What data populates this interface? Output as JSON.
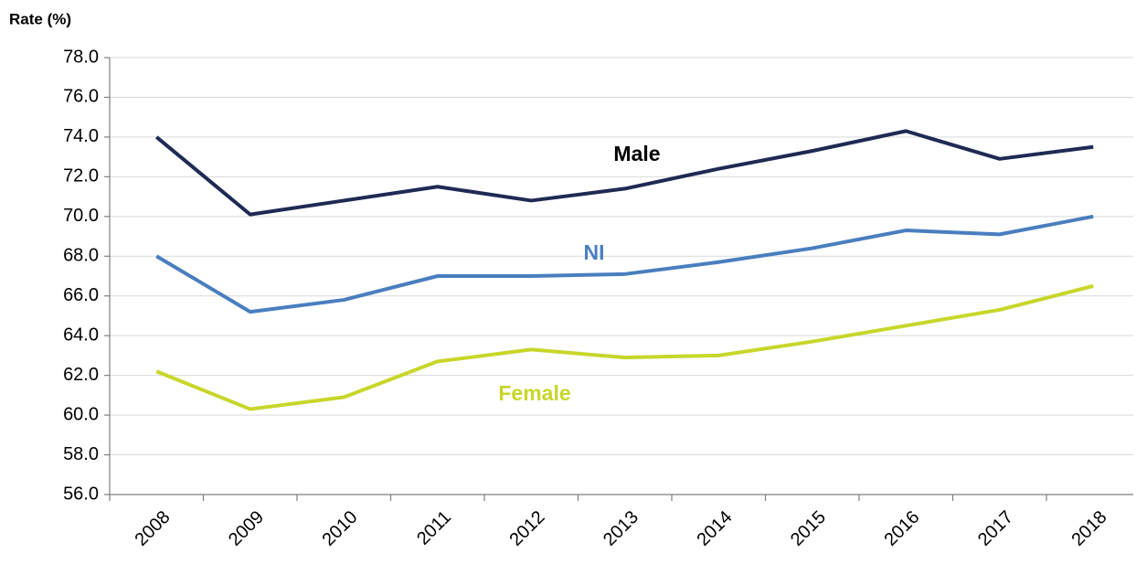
{
  "chart_data": {
    "type": "line",
    "y_label": "Rate (%)",
    "categories": [
      "2008",
      "2009",
      "2010",
      "2011",
      "2012",
      "2013",
      "2014",
      "2015",
      "2016",
      "2017",
      "2018"
    ],
    "series": [
      {
        "name": "Male",
        "color": "#1f2a54",
        "values": [
          74.0,
          70.1,
          70.8,
          71.5,
          70.8,
          71.4,
          72.4,
          73.3,
          74.3,
          72.9,
          73.5
        ]
      },
      {
        "name": "NI",
        "color": "#4a7ebf",
        "values": [
          68.0,
          65.2,
          65.8,
          67.0,
          67.0,
          67.1,
          67.7,
          68.4,
          69.3,
          69.1,
          70.0
        ]
      },
      {
        "name": "Female",
        "color": "#c8d62a",
        "values": [
          62.2,
          60.3,
          60.9,
          62.7,
          63.3,
          62.9,
          63.0,
          63.7,
          64.5,
          65.3,
          66.5
        ]
      }
    ],
    "ylim": [
      56,
      78
    ],
    "yticks": [
      {
        "value": 56,
        "label": "56.0"
      },
      {
        "value": 58,
        "label": "58.0"
      },
      {
        "value": 60,
        "label": "60.0"
      },
      {
        "value": 62,
        "label": "62.0"
      },
      {
        "value": 64,
        "label": "64.0"
      },
      {
        "value": 66,
        "label": "66.0"
      },
      {
        "value": 68,
        "label": "68.0"
      },
      {
        "value": 70,
        "label": "70.0"
      },
      {
        "value": 72,
        "label": "72.0"
      },
      {
        "value": 74,
        "label": "74.0"
      },
      {
        "value": 76,
        "label": "76.0"
      },
      {
        "value": 78,
        "label": "78.0"
      }
    ],
    "grid": true
  }
}
